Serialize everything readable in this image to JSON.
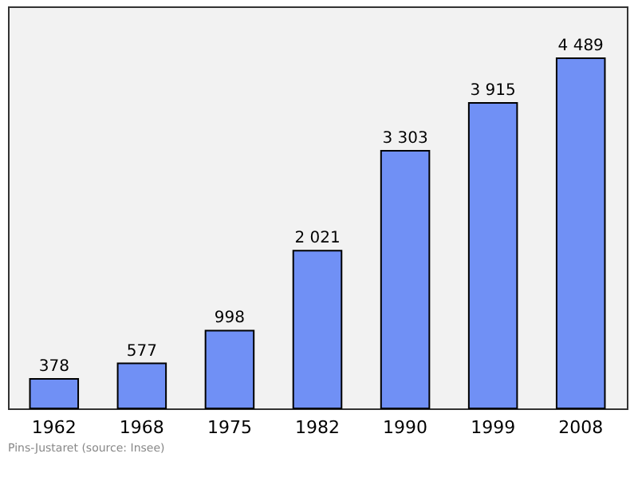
{
  "chart_data": {
    "type": "bar",
    "categories": [
      "1962",
      "1968",
      "1975",
      "1982",
      "1990",
      "1999",
      "2008"
    ],
    "values": [
      378,
      577,
      998,
      2021,
      3303,
      3915,
      4489
    ],
    "value_labels": [
      "378",
      "577",
      "998",
      "2 021",
      "3 303",
      "3 915",
      "4 489"
    ],
    "color": "#7090f5",
    "annotations": [
      "Pins-Justaret    (source: Insee)"
    ],
    "grid": false
  }
}
